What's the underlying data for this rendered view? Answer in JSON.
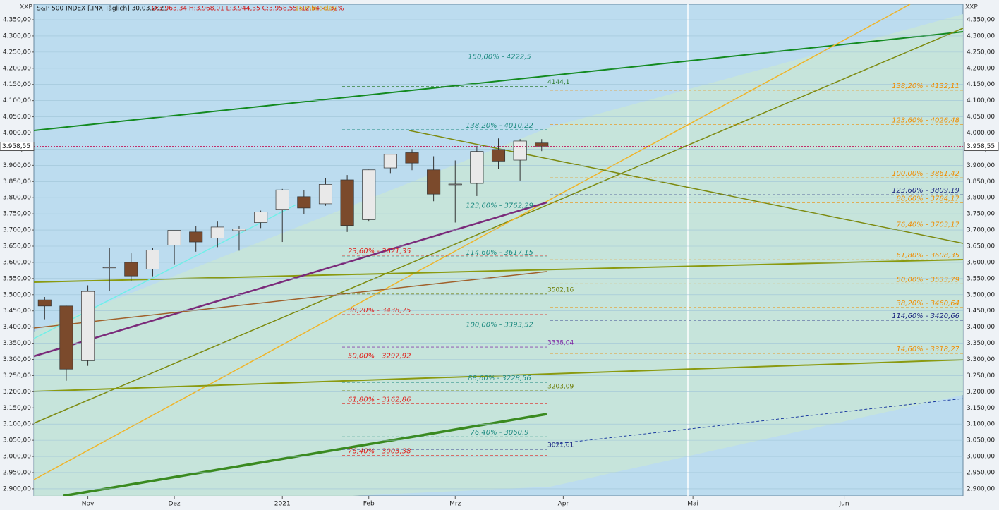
{
  "chart_data": {
    "type": "candlestick",
    "title": "S&P 500 INDEX [.INX Täglich] 30.03.2021",
    "quote": "O:3.963,34 H:3.968,01 L:3.944,35 C:3.958,55 -12,54 -0,32%",
    "delay": "15 min delay",
    "axis_label": "XXP",
    "last_price": {
      "value": 3958.55,
      "label": "3.958,55"
    },
    "categories": [
      null,
      null,
      "Nov",
      null,
      null,
      null,
      "Dez",
      null,
      null,
      null,
      null,
      "2021",
      null,
      null,
      null,
      "Feb",
      null,
      null,
      null,
      "Mrz",
      null,
      null,
      null,
      null,
      "Apr",
      null,
      null,
      null,
      null,
      null,
      "Mai",
      null,
      null,
      null,
      null,
      null,
      null,
      "Jun",
      null,
      null,
      null,
      null,
      null
    ],
    "open": [
      3484,
      3465,
      3296,
      3584,
      3600,
      3579,
      3653,
      3694,
      3675,
      3698,
      3723,
      3764,
      3803,
      3781,
      3855,
      3732,
      3892,
      3939,
      3886,
      3842,
      3844,
      3949,
      3916,
      3969,
      null,
      null,
      null,
      null,
      null,
      null,
      null,
      null,
      null,
      null,
      null,
      null,
      null,
      null,
      null,
      null,
      null,
      null,
      null
    ],
    "high": [
      3493,
      3466,
      3529,
      3645,
      3628,
      3644,
      3699,
      3712,
      3726,
      3711,
      3760,
      3827,
      3823,
      3861,
      3870,
      3887,
      3935,
      3950,
      3928,
      3915,
      3960,
      3983,
      3981,
      3981,
      null,
      null,
      null,
      null,
      null,
      null,
      null,
      null,
      null,
      null,
      null,
      null,
      null,
      null,
      null,
      null,
      null,
      null,
      null
    ],
    "low": [
      3424,
      3234,
      3280,
      3511,
      3543,
      3557,
      3594,
      3633,
      3647,
      3636,
      3706,
      3663,
      3749,
      3775,
      3694,
      3726,
      3876,
      3885,
      3789,
      3723,
      3805,
      3890,
      3853,
      3944,
      null,
      null,
      null,
      null,
      null,
      null,
      null,
      null,
      null,
      null,
      null,
      null,
      null,
      null,
      null,
      null,
      null,
      null,
      null
    ],
    "close": [
      3465,
      3270,
      3510,
      3585,
      3558,
      3638,
      3699,
      3663,
      3709,
      3703,
      3756,
      3824,
      3768,
      3841,
      3714,
      3886,
      3934,
      3907,
      3811,
      3842,
      3943,
      3913,
      3975,
      3959,
      null,
      null,
      null,
      null,
      null,
      null,
      null,
      null,
      null,
      null,
      null,
      null,
      null,
      null,
      null,
      null,
      null,
      null,
      null
    ],
    "up_color": "#e9e9e9",
    "down_color": "#7b4a2c",
    "ylim": [
      2878,
      4398
    ],
    "yticks": [
      {
        "value": 2900,
        "label": "2.900,00"
      },
      {
        "value": 2950,
        "label": "2.950,00"
      },
      {
        "value": 3000,
        "label": "3.000,00"
      },
      {
        "value": 3050,
        "label": "3.050,00"
      },
      {
        "value": 3100,
        "label": "3.100,00"
      },
      {
        "value": 3150,
        "label": "3.150,00"
      },
      {
        "value": 3200,
        "label": "3.200,00"
      },
      {
        "value": 3250,
        "label": "3.250,00"
      },
      {
        "value": 3300,
        "label": "3.300,00"
      },
      {
        "value": 3350,
        "label": "3.350,00"
      },
      {
        "value": 3400,
        "label": "3.400,00"
      },
      {
        "value": 3450,
        "label": "3.450,00"
      },
      {
        "value": 3500,
        "label": "3.500,00"
      },
      {
        "value": 3550,
        "label": "3.550,00"
      },
      {
        "value": 3600,
        "label": "3.600,00"
      },
      {
        "value": 3650,
        "label": "3.650,00"
      },
      {
        "value": 3700,
        "label": "3.700,00"
      },
      {
        "value": 3750,
        "label": "3.750,00"
      },
      {
        "value": 3800,
        "label": "3.800,00"
      },
      {
        "value": 3850,
        "label": "3.850,00"
      },
      {
        "value": 3900,
        "label": "3.900,00"
      },
      {
        "value": 3950,
        "label": "3.950,00"
      },
      {
        "value": 4000,
        "label": "4.000,00"
      },
      {
        "value": 4050,
        "label": "4.050,00"
      },
      {
        "value": 4100,
        "label": "4.100,00"
      },
      {
        "value": 4150,
        "label": "4.150,00"
      },
      {
        "value": 4200,
        "label": "4.200,00"
      },
      {
        "value": 4250,
        "label": "4.250,00"
      },
      {
        "value": 4300,
        "label": "4.300,00"
      },
      {
        "value": 4350,
        "label": "4.350,00"
      }
    ],
    "grid": true,
    "levels": [
      {
        "value": 4222.5,
        "label": "150,00% - 4222,5",
        "color": "#1d8a80",
        "position": "center"
      },
      {
        "value": 4010.22,
        "label": "138,20% - 4010,22",
        "color": "#1d8a80",
        "position": "center"
      },
      {
        "value": 3762.29,
        "label": "123,60% - 3762,29",
        "color": "#1d8a80",
        "position": "center"
      },
      {
        "value": 3617.15,
        "label": "114,60% - 3617,15",
        "color": "#1d8a80",
        "position": "center"
      },
      {
        "value": 3393.52,
        "label": "100,00% - 3393,52",
        "color": "#1d8a80",
        "position": "center"
      },
      {
        "value": 3228.56,
        "label": "88,60% - 3228,56",
        "color": "#1d8a80",
        "position": "center"
      },
      {
        "value": 3060.9,
        "label": "76,40% - 3060,9",
        "color": "#1d8a80",
        "position": "center"
      },
      {
        "value": 3621.35,
        "label": "23,60% - 3621,35",
        "color": "#e0201c",
        "position": "left"
      },
      {
        "value": 3438.75,
        "label": "38,20% - 3438,75",
        "color": "#e0201c",
        "position": "left"
      },
      {
        "value": 3297.92,
        "label": "50,00% - 3297,92",
        "color": "#e0201c",
        "position": "left"
      },
      {
        "value": 3162.86,
        "label": "61,80% - 3162,86",
        "color": "#e0201c",
        "position": "left"
      },
      {
        "value": 3003.38,
        "label": "76,40% - 3003,38",
        "color": "#e0201c",
        "position": "left"
      },
      {
        "value": 4132.11,
        "label": "138,20% - 4132,11",
        "color": "#f08c00",
        "position": "right"
      },
      {
        "value": 4026.48,
        "label": "123,60% - 4026,48",
        "color": "#f08c00",
        "position": "right"
      },
      {
        "value": 3861.42,
        "label": "100,00% - 3861,42",
        "color": "#f08c00",
        "position": "right"
      },
      {
        "value": 3809.19,
        "label": "123,60% - 3809,19",
        "color": "#1a237e",
        "position": "right"
      },
      {
        "value": 3784.17,
        "label": "88,60% - 3784,17",
        "color": "#f08c00",
        "position": "right"
      },
      {
        "value": 3703.17,
        "label": "76,40% - 3703,17",
        "color": "#f08c00",
        "position": "right"
      },
      {
        "value": 3608.35,
        "label": "61,80% - 3608,35",
        "color": "#f08c00",
        "position": "right"
      },
      {
        "value": 3533.79,
        "label": "50,00% - 3533,79",
        "color": "#f08c00",
        "position": "right"
      },
      {
        "value": 3460.64,
        "label": "38,20% - 3460,64",
        "color": "#f08c00",
        "position": "right"
      },
      {
        "value": 3420.66,
        "label": "114,60% - 3420,66",
        "color": "#1a237e",
        "position": "right"
      },
      {
        "value": 3318.27,
        "label": "14,60% - 3318,27",
        "color": "#f08c00",
        "position": "right"
      },
      {
        "value": 4144.1,
        "label": "4144,1",
        "color": "#2e7d32",
        "position": "near"
      },
      {
        "value": 3502.16,
        "label": "3502,16",
        "color": "#6b7a00",
        "position": "near"
      },
      {
        "value": 3338.04,
        "label": "3338,04",
        "color": "#7b1fa2",
        "position": "near"
      },
      {
        "value": 3203.09,
        "label": "3203,09",
        "color": "#6b7a00",
        "position": "near"
      },
      {
        "value": 3021.61,
        "label": "3021,61",
        "color": "#1a237e",
        "position": "near"
      }
    ]
  }
}
